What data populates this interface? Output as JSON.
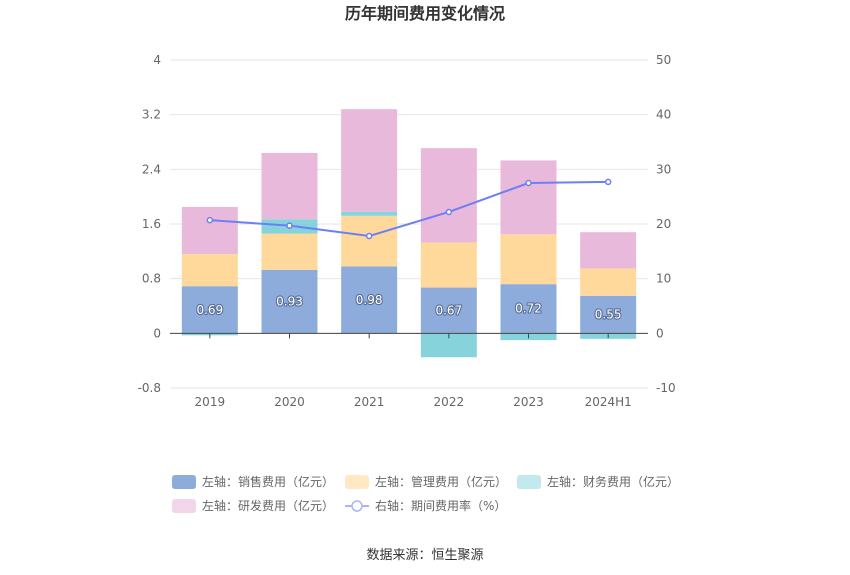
{
  "chart_data": {
    "type": "bar",
    "title": "历年期间费用变化情况",
    "categories": [
      "2019",
      "2020",
      "2021",
      "2022",
      "2023",
      "2024H1"
    ],
    "left_axis": {
      "ticks": [
        "4",
        "3.2",
        "2.4",
        "1.6",
        "0.8",
        "0",
        "-0.8"
      ],
      "ylim": [
        -0.8,
        4
      ]
    },
    "right_axis": {
      "ticks": [
        "50",
        "40",
        "30",
        "20",
        "10",
        "0",
        "-10"
      ],
      "ylim": [
        -10,
        50
      ]
    },
    "series": [
      {
        "name": "左轴：销售费用（亿元）",
        "kind": "bar",
        "axis": "left",
        "color": "#8eacdb",
        "values": [
          0.69,
          0.93,
          0.98,
          0.67,
          0.72,
          0.55
        ]
      },
      {
        "name": "左轴：管理费用（亿元）",
        "kind": "bar",
        "axis": "left",
        "color": "#ffd99b",
        "values": [
          0.47,
          0.53,
          0.74,
          0.66,
          0.73,
          0.4
        ]
      },
      {
        "name": "左轴：财务费用（亿元）",
        "kind": "bar",
        "axis": "left",
        "color": "#86d3dc",
        "values": [
          -0.03,
          0.21,
          0.06,
          -0.35,
          -0.1,
          -0.08
        ]
      },
      {
        "name": "左轴：研发费用（亿元）",
        "kind": "bar",
        "axis": "left",
        "color": "#e8b9da",
        "values": [
          0.69,
          0.97,
          1.5,
          1.38,
          1.08,
          0.53
        ]
      },
      {
        "name": "右轴：期间费用率（%）",
        "kind": "line",
        "axis": "right",
        "color": "#6d7ff5",
        "values": [
          20.7,
          19.7,
          17.8,
          22.2,
          27.5,
          27.7
        ]
      }
    ],
    "data_labels": [
      "0.69",
      "0.93",
      "0.98",
      "0.67",
      "0.72",
      "0.55"
    ],
    "legend_position": "bottom",
    "grid": true
  },
  "source": "数据来源：恒生聚源"
}
